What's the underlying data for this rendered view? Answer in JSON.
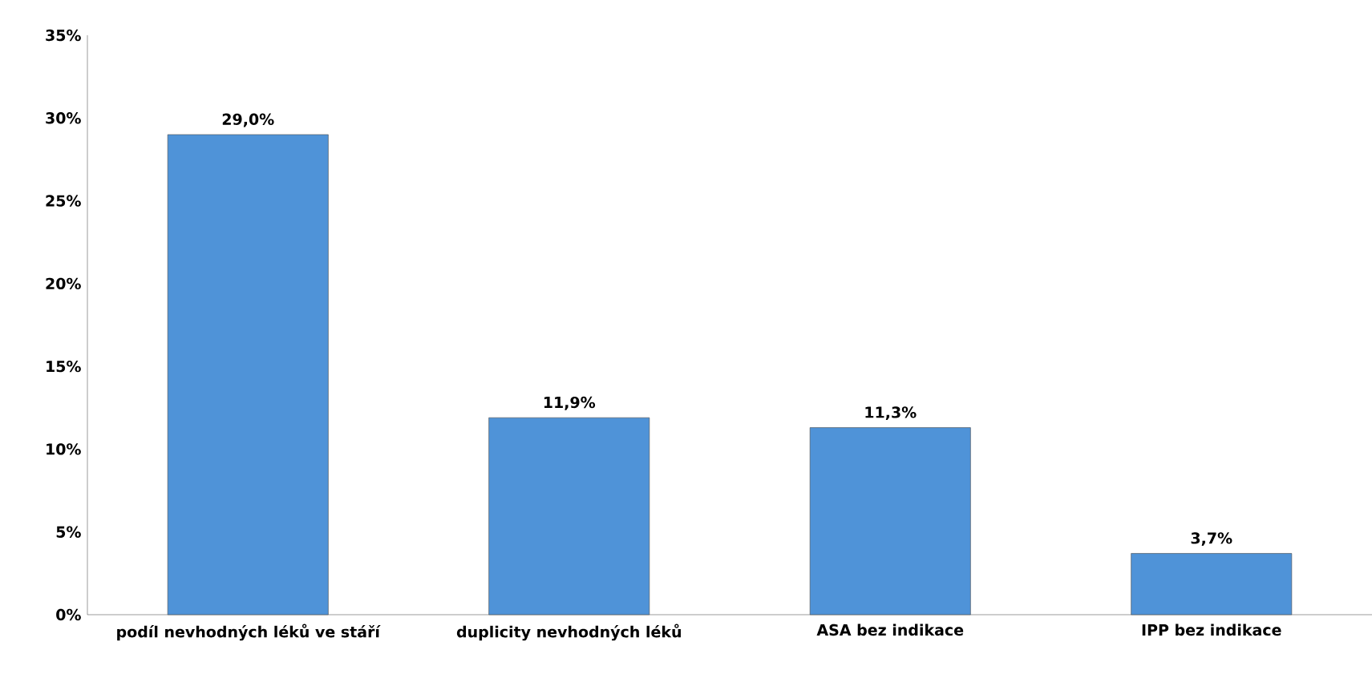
{
  "chart_data": {
    "type": "bar",
    "categories": [
      "podíl nevhodných léků ve stáří",
      "duplicity nevhodných léků",
      "ASA bez indikace",
      "IPP bez indikace"
    ],
    "values": [
      29.0,
      11.9,
      11.3,
      3.7
    ],
    "value_labels": [
      "29,0%",
      "11,9%",
      "11,3%",
      "3,7%"
    ],
    "color": "#4f93d8",
    "ylim": [
      0,
      35
    ],
    "yticks": [
      {
        "value": 0,
        "label": "0%"
      },
      {
        "value": 5,
        "label": "5%"
      },
      {
        "value": 10,
        "label": "10%"
      },
      {
        "value": 15,
        "label": "15%"
      },
      {
        "value": 20,
        "label": "20%"
      },
      {
        "value": 25,
        "label": "25%"
      },
      {
        "value": 30,
        "label": "30%"
      },
      {
        "value": 35,
        "label": "35%"
      }
    ]
  }
}
